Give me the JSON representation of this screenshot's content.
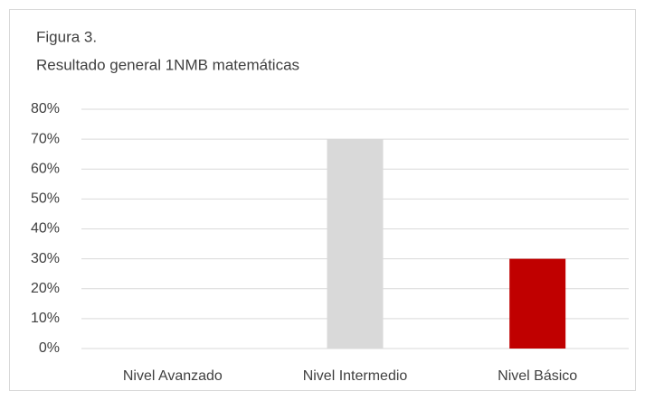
{
  "chart_data": {
    "type": "bar",
    "title": "Figura 3.",
    "subtitle": "Resultado general 1NMB matemáticas",
    "categories": [
      "Nivel Avanzado",
      "Nivel Intermedio",
      "Nivel Básico"
    ],
    "values": [
      0,
      70,
      30
    ],
    "colors": [
      "#4472c4",
      "#d9d9d9",
      "#c00000"
    ],
    "ylim": [
      0,
      80
    ],
    "yticks": [
      {
        "value": 0,
        "label": "0%"
      },
      {
        "value": 10,
        "label": "10%"
      },
      {
        "value": 20,
        "label": "20%"
      },
      {
        "value": 30,
        "label": "30%"
      },
      {
        "value": 40,
        "label": "40%"
      },
      {
        "value": 50,
        "label": "50%"
      },
      {
        "value": 60,
        "label": "60%"
      },
      {
        "value": 70,
        "label": "70%"
      },
      {
        "value": 80,
        "label": "80%"
      }
    ],
    "grid": true
  }
}
